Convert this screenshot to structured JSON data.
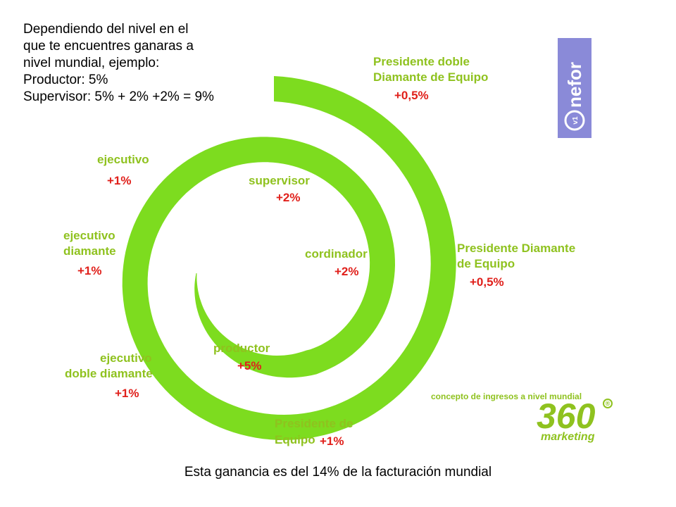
{
  "intro": {
    "lines": [
      "Dependiendo del nivel en el",
      "que te encuentres ganaras a",
      "nivel mundial, ejemplo:",
      "Productor: 5%",
      "Supervisor: 5% + 2% +2% = 9%"
    ]
  },
  "levels": [
    {
      "name": "productor",
      "pct": "+5%"
    },
    {
      "name": "cordinador",
      "pct": "+2%"
    },
    {
      "name": "supervisor",
      "pct": "+2%"
    },
    {
      "name": "ejecutivo",
      "pct": "+1%"
    },
    {
      "name_lines": [
        "ejecutivo",
        "diamante"
      ],
      "pct": "+1%"
    },
    {
      "name_lines": [
        "ejecutivo",
        "doble diamante"
      ],
      "pct": "+1%"
    },
    {
      "name_lines": [
        "Presidente de",
        "Equipo"
      ],
      "pct": "+1%"
    },
    {
      "name_lines": [
        "Presidente Diamante",
        "de Equipo"
      ],
      "pct": "+0,5%"
    },
    {
      "name_lines": [
        "Presidente doble",
        "Diamante de Equipo"
      ],
      "pct": "+0,5%"
    }
  ],
  "brand": {
    "logo_text": "nefor",
    "caption": "concepto de ingresos a nivel mundial",
    "big": "360",
    "reg": "®",
    "sub": "marketing"
  },
  "footer": "Esta ganancia es del 14% de la facturación mundial",
  "colors": {
    "spiral": "#7ddc1f",
    "label_green": "#8fc21f",
    "percent_red": "#e0201b",
    "logo_bg": "#8a8ad8"
  }
}
